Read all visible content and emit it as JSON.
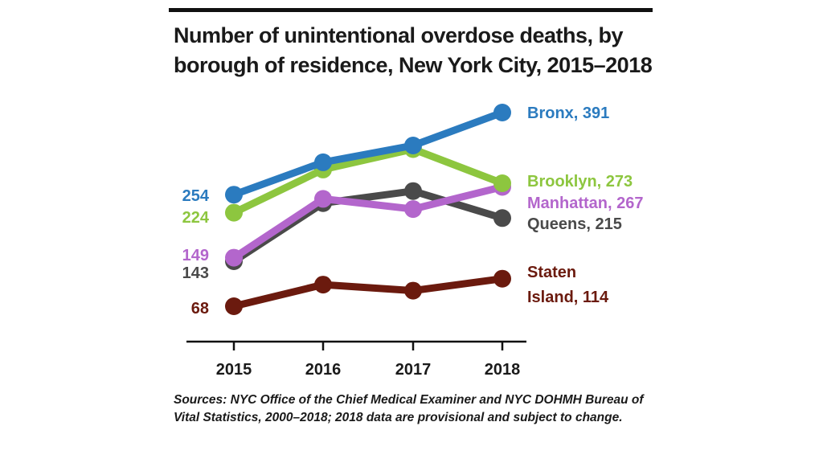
{
  "chart_data": {
    "type": "line",
    "title": "Number of unintentional overdose deaths, by borough of residence, New York City, 2015–2018",
    "x": [
      "2015",
      "2016",
      "2017",
      "2018"
    ],
    "ylim": [
      40,
      420
    ],
    "grid": false,
    "series": [
      {
        "name": "Bronx",
        "values": [
          254,
          308,
          336,
          391
        ],
        "color": "#2b7bbf",
        "start_label": "254",
        "end_label": "Bronx, 391"
      },
      {
        "name": "Brooklyn",
        "values": [
          224,
          296,
          330,
          273
        ],
        "color": "#8dc63f",
        "start_label": "224",
        "end_label": "Brooklyn, 273"
      },
      {
        "name": "Queens",
        "values": [
          143,
          240,
          260,
          215
        ],
        "color": "#4a4a4a",
        "start_label": "143",
        "end_label": "Queens, 215"
      },
      {
        "name": "Manhattan",
        "values": [
          149,
          247,
          230,
          267
        ],
        "color": "#b366cc",
        "start_label": "149",
        "end_label": "Manhattan, 267"
      },
      {
        "name": "Staten Island",
        "values": [
          68,
          104,
          94,
          114
        ],
        "color": "#6b1a0e",
        "start_label": "68",
        "end_label": [
          "Staten",
          "Island, 114"
        ]
      }
    ],
    "draw_order": [
      "Staten Island",
      "Queens",
      "Manhattan",
      "Brooklyn",
      "Bronx"
    ]
  },
  "source_note": "Sources: NYC Office of the Chief Medical Examiner and NYC DOHMH Bureau of Vital Statistics, 2000–2018; 2018 data are provisional and subject to change."
}
